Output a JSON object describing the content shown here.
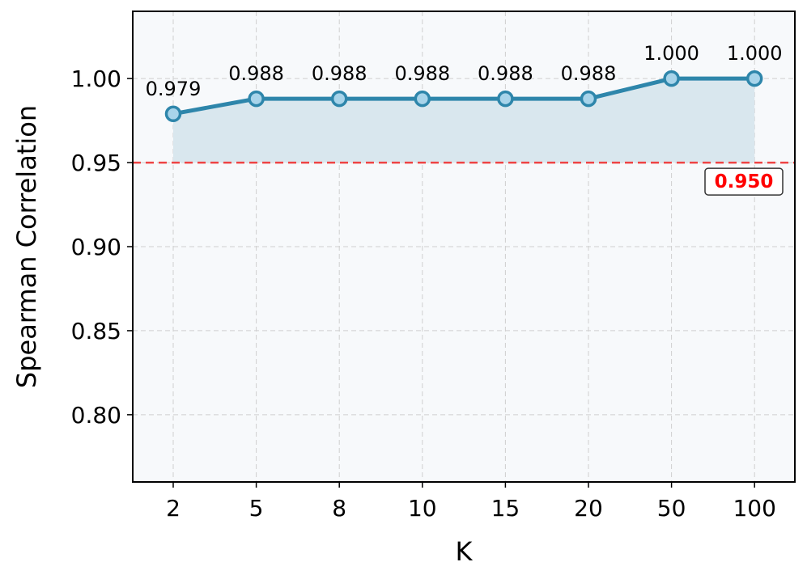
{
  "chart_data": {
    "type": "line",
    "categories": [
      "2",
      "5",
      "8",
      "10",
      "15",
      "20",
      "50",
      "100"
    ],
    "series": [
      {
        "values": [
          0.979,
          0.988,
          0.988,
          0.988,
          0.988,
          0.988,
          1.0,
          1.0
        ]
      }
    ],
    "data_labels": [
      "0.979",
      "0.988",
      "0.988",
      "0.988",
      "0.988",
      "0.988",
      "1.000",
      "1.000"
    ],
    "xlabel": "K",
    "ylabel": "Spearman Correlation",
    "ylim": [
      0.76,
      1.04
    ],
    "yticks": [
      0.8,
      0.85,
      0.9,
      0.95,
      1.0
    ],
    "ytick_labels": [
      "0.80",
      "0.85",
      "0.90",
      "0.95",
      "1.00"
    ],
    "threshold": {
      "value": 0.95,
      "label": "0.950",
      "color": "#ee4444"
    },
    "grid": true,
    "colors": {
      "line": "#2e86ab",
      "marker_fill": "#a8d4ea",
      "area_fill": "#d9e7ee",
      "plot_background": "#f7f9fb",
      "threshold_text": "#ff0000"
    }
  }
}
